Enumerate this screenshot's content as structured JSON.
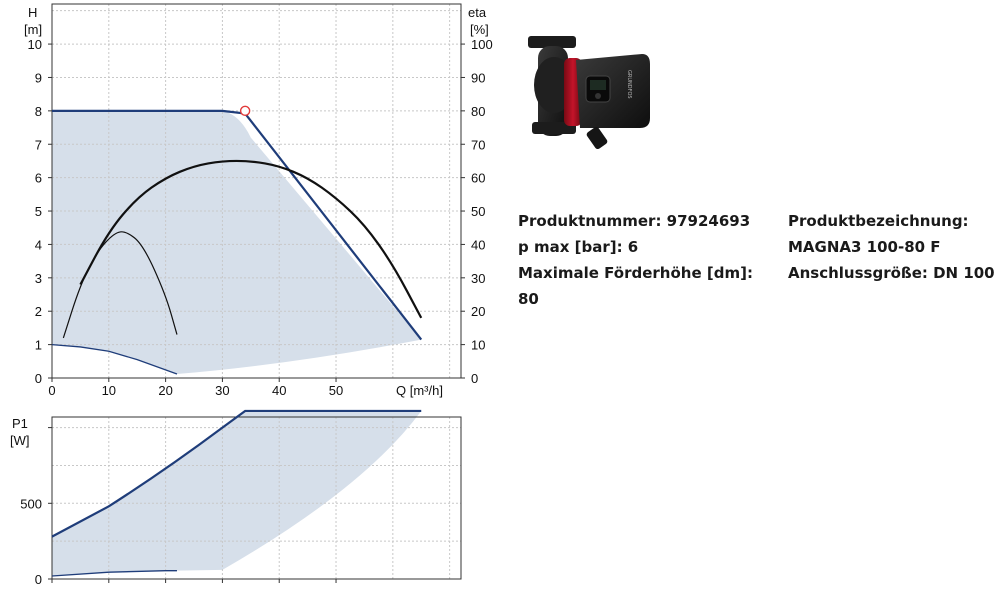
{
  "chart_data": [
    {
      "type": "line",
      "title": "",
      "xlabel": "Q [m³/h]",
      "ylabel_left": [
        "H",
        "[m]"
      ],
      "ylabel_right": [
        "eta",
        "[%]"
      ],
      "xlim": [
        0,
        72
      ],
      "ylim_left": [
        0,
        11.2
      ],
      "ylim_right": [
        0,
        112
      ],
      "grid": true,
      "x_ticks": [
        "0",
        "10",
        "20",
        "30",
        "40",
        "50"
      ],
      "y_ticks_left": [
        "0",
        "1",
        "2",
        "3",
        "4",
        "5",
        "6",
        "7",
        "8",
        "9",
        "10"
      ],
      "y_ticks_right": [
        "0",
        "10",
        "20",
        "30",
        "40",
        "50",
        "60",
        "70",
        "80",
        "90",
        "100"
      ],
      "series": [
        {
          "role": "max-head",
          "color": "#1f3d7a",
          "x": [
            0,
            30,
            34,
            65
          ],
          "y": [
            8,
            8,
            7.92,
            1.15
          ]
        },
        {
          "role": "min-head",
          "color": "#1f3d7a",
          "x": [
            0,
            5,
            10,
            15,
            22
          ],
          "y": [
            1.0,
            0.93,
            0.8,
            0.55,
            0.12
          ]
        },
        {
          "role": "efficiency-max",
          "color": "#111111",
          "x": [
            5,
            10,
            15,
            20,
            25,
            30,
            35,
            40,
            45,
            50,
            55,
            60,
            65
          ],
          "y": [
            28,
            44,
            54,
            60,
            63.5,
            65,
            65,
            63.5,
            60,
            54,
            46,
            34,
            18
          ]
        },
        {
          "role": "efficiency-min",
          "color": "#111111",
          "x": [
            2,
            5,
            8,
            11,
            13,
            16,
            20,
            22
          ],
          "y": [
            12,
            28,
            38,
            43.5,
            44,
            40,
            25,
            13
          ]
        }
      ],
      "duty_point": {
        "x": 34,
        "y": 8
      },
      "area_color": "#d6dfea"
    },
    {
      "type": "line",
      "title": "",
      "ylabel": [
        "P1",
        "[W]"
      ],
      "xlim": [
        0,
        72
      ],
      "ylim": [
        0,
        1070
      ],
      "grid": true,
      "y_ticks": [
        "0",
        "500"
      ],
      "series": [
        {
          "role": "power-max",
          "color": "#1f3d7a",
          "x": [
            0,
            10,
            20,
            30,
            34,
            65
          ],
          "y": [
            280,
            480,
            720,
            1000,
            1110,
            1110
          ]
        },
        {
          "role": "power-min",
          "color": "#1f3d7a",
          "x": [
            0,
            10,
            20,
            22
          ],
          "y": [
            20,
            45,
            55,
            55
          ]
        }
      ],
      "area_color": "#d6dfea"
    }
  ],
  "product": {
    "number_line": "Produktnummer: 97924693",
    "pmax_line": "p max [bar]: 6",
    "head_label": "Maximale Förderhöhe [dm]:",
    "head_value": "80",
    "designation_label": "Produktbezeichnung:",
    "designation_value": "MAGNA3 100-80 F",
    "connection_line": "Anschlussgröße: DN 100",
    "image_icon": "circulator-pump-icon"
  }
}
